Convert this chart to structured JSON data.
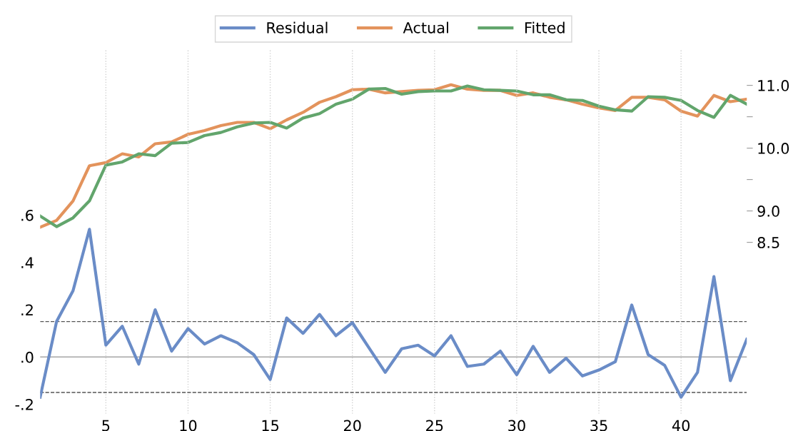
{
  "chart_data": {
    "type": "line",
    "x": [
      1,
      2,
      3,
      4,
      5,
      6,
      7,
      8,
      9,
      10,
      11,
      12,
      13,
      14,
      15,
      16,
      17,
      18,
      19,
      20,
      21,
      22,
      23,
      24,
      25,
      26,
      27,
      28,
      29,
      30,
      31,
      32,
      33,
      34,
      35,
      36,
      37,
      38,
      39,
      40,
      41,
      42,
      43,
      44
    ],
    "series": [
      {
        "name": "Residual",
        "color": "#6a8cc7",
        "values": [
          -0.17,
          0.15,
          0.28,
          0.54,
          0.05,
          0.13,
          -0.03,
          0.2,
          0.025,
          0.12,
          0.055,
          0.09,
          0.06,
          0.01,
          -0.095,
          0.165,
          0.1,
          0.18,
          0.09,
          0.145,
          0.04,
          -0.065,
          0.035,
          0.05,
          0.005,
          0.09,
          -0.04,
          -0.03,
          0.025,
          -0.075,
          0.045,
          -0.065,
          -0.005,
          -0.08,
          -0.055,
          -0.02,
          0.22,
          0.01,
          -0.035,
          -0.17,
          -0.065,
          0.34,
          -0.1,
          0.075
        ]
      },
      {
        "name": "Actual",
        "color": "#e3935c",
        "axis": "y2",
        "values": [
          8.74,
          8.85,
          9.16,
          9.72,
          9.77,
          9.91,
          9.86,
          10.07,
          10.1,
          10.22,
          10.28,
          10.36,
          10.41,
          10.41,
          10.31,
          10.45,
          10.57,
          10.73,
          10.82,
          10.93,
          10.94,
          10.88,
          10.9,
          10.92,
          10.93,
          11.01,
          10.94,
          10.92,
          10.92,
          10.84,
          10.88,
          10.81,
          10.77,
          10.7,
          10.64,
          10.6,
          10.81,
          10.81,
          10.77,
          10.59,
          10.51,
          10.84,
          10.74,
          10.78
        ]
      },
      {
        "name": "Fitted",
        "color": "#62a56c",
        "axis": "y2",
        "values": [
          8.92,
          8.75,
          8.89,
          9.16,
          9.73,
          9.78,
          9.91,
          9.88,
          10.08,
          10.09,
          10.2,
          10.25,
          10.34,
          10.4,
          10.41,
          10.32,
          10.48,
          10.55,
          10.7,
          10.78,
          10.94,
          10.95,
          10.86,
          10.9,
          10.91,
          10.91,
          10.99,
          10.93,
          10.92,
          10.91,
          10.85,
          10.85,
          10.77,
          10.76,
          10.67,
          10.61,
          10.59,
          10.82,
          10.81,
          10.76,
          10.6,
          10.49,
          10.84,
          10.7
        ]
      }
    ],
    "xlim": [
      1,
      44
    ],
    "xticks": [
      5,
      10,
      15,
      20,
      25,
      30,
      35,
      40
    ],
    "ylim": [
      -0.24,
      1.3
    ],
    "yticks": [
      {
        "value": -0.2,
        "label": "-.2"
      },
      {
        "value": 0.0,
        "label": ".0"
      },
      {
        "value": 0.2,
        "label": ".2"
      },
      {
        "value": 0.4,
        "label": ".4"
      },
      {
        "value": 0.6,
        "label": ".6"
      }
    ],
    "y2lim": [
      5.77,
      11.57
    ],
    "y2ticks": [
      8.5,
      {
        "value": 9,
        "label": "9.0"
      },
      {
        "value": 9.5,
        "label": null
      },
      {
        "value": 10,
        "label": "10.0"
      },
      {
        "value": 10.5,
        "label": null
      },
      {
        "value": 11,
        "label": "11.0"
      }
    ],
    "ref_lines": [
      {
        "axis": "y",
        "value": 0,
        "color": "#a6a6a6",
        "line_style": "solid"
      },
      {
        "axis": "y",
        "value": 0.15,
        "color": "#555555",
        "line_style": "dashed"
      },
      {
        "axis": "y",
        "value": -0.15,
        "color": "#555555",
        "line_style": "dashed"
      }
    ],
    "grid": "x",
    "legend": "top",
    "line_style": "solid",
    "marker": "none"
  }
}
